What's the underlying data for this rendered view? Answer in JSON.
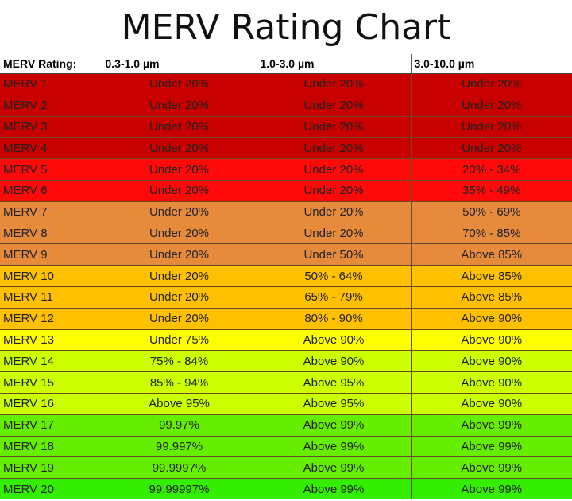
{
  "chart_data": {
    "type": "table",
    "title": "MERV Rating Chart",
    "columns": [
      "MERV Rating:",
      "0.3-1.0 µm",
      "1.0-3.0 µm",
      "3.0-10.0 µm"
    ],
    "rows": [
      {
        "rating": "MERV 1",
        "c1": "Under 20%",
        "c2": "Under 20%",
        "c3": "Under 20%",
        "color": "#c80000"
      },
      {
        "rating": "MERV 2",
        "c1": "Under 20%",
        "c2": "Under 20%",
        "c3": "Under 20%",
        "color": "#c80000"
      },
      {
        "rating": "MERV 3",
        "c1": "Under 20%",
        "c2": "Under 20%",
        "c3": "Under 20%",
        "color": "#c80000"
      },
      {
        "rating": "MERV 4",
        "c1": "Under 20%",
        "c2": "Under 20%",
        "c3": "Under 20%",
        "color": "#c80000"
      },
      {
        "rating": "MERV 5",
        "c1": "Under 20%",
        "c2": "Under 20%",
        "c3": "20% - 34%",
        "color": "#ff0a0a"
      },
      {
        "rating": "MERV 6",
        "c1": "Under 20%",
        "c2": "Under 20%",
        "c3": "35% - 49%",
        "color": "#ff0a0a"
      },
      {
        "rating": "MERV 7",
        "c1": "Under 20%",
        "c2": "Under 20%",
        "c3": "50% - 69%",
        "color": "#e68a3c"
      },
      {
        "rating": "MERV 8",
        "c1": "Under 20%",
        "c2": "Under 20%",
        "c3": "70% - 85%",
        "color": "#e68a3c"
      },
      {
        "rating": "MERV 9",
        "c1": "Under 20%",
        "c2": "Under 50%",
        "c3": "Above 85%",
        "color": "#e68a3c"
      },
      {
        "rating": "MERV 10",
        "c1": "Under 20%",
        "c2": "50% - 64%",
        "c3": "Above 85%",
        "color": "#ffc000"
      },
      {
        "rating": "MERV 11",
        "c1": "Under 20%",
        "c2": "65% - 79%",
        "c3": "Above 85%",
        "color": "#ffc000"
      },
      {
        "rating": "MERV 12",
        "c1": "Under 20%",
        "c2": "80% - 90%",
        "c3": "Above 90%",
        "color": "#ffc000"
      },
      {
        "rating": "MERV 13",
        "c1": "Under 75%",
        "c2": "Above 90%",
        "c3": "Above 90%",
        "color": "#ffff00"
      },
      {
        "rating": "MERV 14",
        "c1": "75% - 84%",
        "c2": "Above 90%",
        "c3": "Above 90%",
        "color": "#ccff00"
      },
      {
        "rating": "MERV 15",
        "c1": "85% - 94%",
        "c2": "Above 95%",
        "c3": "Above 90%",
        "color": "#ccff00"
      },
      {
        "rating": "MERV 16",
        "c1": "Above 95%",
        "c2": "Above 95%",
        "c3": "Above 90%",
        "color": "#ccff00"
      },
      {
        "rating": "MERV 17",
        "c1": "99.97%",
        "c2": "Above 99%",
        "c3": "Above 99%",
        "color": "#66ee00"
      },
      {
        "rating": "MERV 18",
        "c1": "99.997%",
        "c2": "Above 99%",
        "c3": "Above 99%",
        "color": "#66ee00"
      },
      {
        "rating": "MERV 19",
        "c1": "99.9997%",
        "c2": "Above 99%",
        "c3": "Above 99%",
        "color": "#66ee00"
      },
      {
        "rating": "MERV 20",
        "c1": "99.99997%",
        "c2": "Above 99%",
        "c3": "Above 99%",
        "color": "#33ee00"
      }
    ]
  }
}
